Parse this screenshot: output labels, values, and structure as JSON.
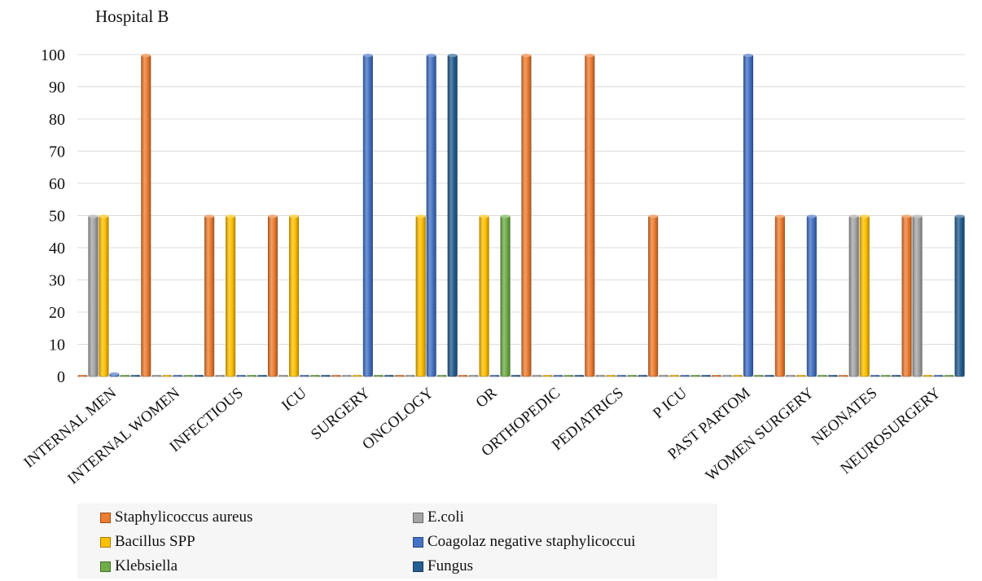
{
  "chart_data": {
    "type": "bar",
    "title": "Hospital B",
    "categories": [
      "INTERNAL MEN",
      "INTERNAL WOMEN",
      "INFECTIOUS",
      "ICU",
      "SURGERY",
      "ONCOLOGY",
      "OR",
      "ORTHOPEDIC",
      "PEDIATRICS",
      "P ICU",
      "PAST PARTOM",
      "WOMEN SURGERY",
      "NEONATES",
      "NEUROSURGERY"
    ],
    "ylim": [
      0,
      100
    ],
    "yticks": [
      0,
      10,
      20,
      30,
      40,
      50,
      60,
      70,
      80,
      90,
      100
    ],
    "grid": true,
    "legend_position": "bottom",
    "series": [
      {
        "name": "Staphylicoccus aureus",
        "color": "#ED7D31",
        "values": [
          0,
          100,
          50,
          50,
          0,
          0,
          0,
          100,
          100,
          50,
          0,
          50,
          0,
          50
        ]
      },
      {
        "name": "E.coli",
        "color": "#A5A5A5",
        "values": [
          50,
          0,
          0,
          0,
          0,
          0,
          0,
          0,
          0,
          0,
          0,
          0,
          50,
          50
        ]
      },
      {
        "name": "Bacillus SPP",
        "color": "#FFC000",
        "values": [
          50,
          0,
          50,
          50,
          0,
          50,
          50,
          0,
          0,
          0,
          0,
          0,
          50,
          0
        ]
      },
      {
        "name": "Coagolaz negative staphylicoccui",
        "color": "#4472C4",
        "values": [
          1,
          0,
          0,
          0,
          100,
          100,
          0,
          0,
          0,
          0,
          100,
          50,
          0,
          0
        ]
      },
      {
        "name": "Klebsiella",
        "color": "#70AD47",
        "values": [
          0,
          0,
          0,
          0,
          0,
          0,
          50,
          0,
          0,
          0,
          0,
          0,
          0,
          0
        ]
      },
      {
        "name": "Fungus",
        "color": "#255E91",
        "values": [
          0,
          0,
          0,
          0,
          0,
          100,
          0,
          0,
          0,
          0,
          0,
          0,
          0,
          50
        ]
      }
    ]
  }
}
